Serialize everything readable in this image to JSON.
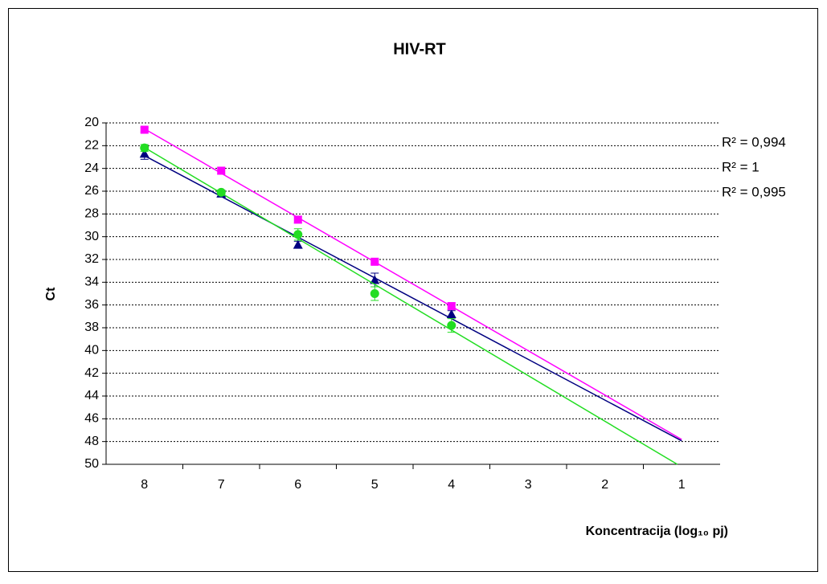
{
  "chart_data": {
    "type": "scatter",
    "title": "HIV-RT",
    "x_label": "Koncentracija (log₁₀ pj)",
    "y_label": "Ct",
    "xlim": [
      8.5,
      0.5
    ],
    "xticks": [
      8,
      7,
      6,
      5,
      4,
      3,
      2,
      1
    ],
    "ylim": [
      50,
      20
    ],
    "yticks": [
      20,
      22,
      24,
      26,
      28,
      30,
      32,
      34,
      36,
      38,
      40,
      42,
      44,
      46,
      48,
      50
    ],
    "grid": true,
    "trendline": {
      "type": "linear",
      "forward_to": 1
    },
    "series": [
      {
        "color": "#000080",
        "marker": "triangle",
        "x": [
          8,
          7,
          6,
          5,
          4
        ],
        "values": [
          22.7,
          26.2,
          30.7,
          33.8,
          36.8
        ],
        "errors": [
          0.5,
          0.3,
          0.3,
          0.6,
          0.3
        ],
        "r2_label": "R² = 0,994"
      },
      {
        "color": "#ff00ff",
        "marker": "square",
        "x": [
          8,
          7,
          6,
          5,
          4
        ],
        "values": [
          20.6,
          24.2,
          28.5,
          32.2,
          36.1
        ],
        "errors": [
          0.2,
          0.3,
          0.3,
          0.2,
          0.3
        ],
        "r2_label": "R² = 1"
      },
      {
        "color": "#22dd22",
        "marker": "circle",
        "x": [
          8,
          7,
          6,
          5,
          4
        ],
        "values": [
          22.2,
          26.1,
          29.8,
          35.0,
          37.8
        ],
        "errors": [
          0.3,
          0.2,
          0.5,
          0.6,
          0.6
        ],
        "r2_label": "R² = 0,995"
      }
    ]
  }
}
